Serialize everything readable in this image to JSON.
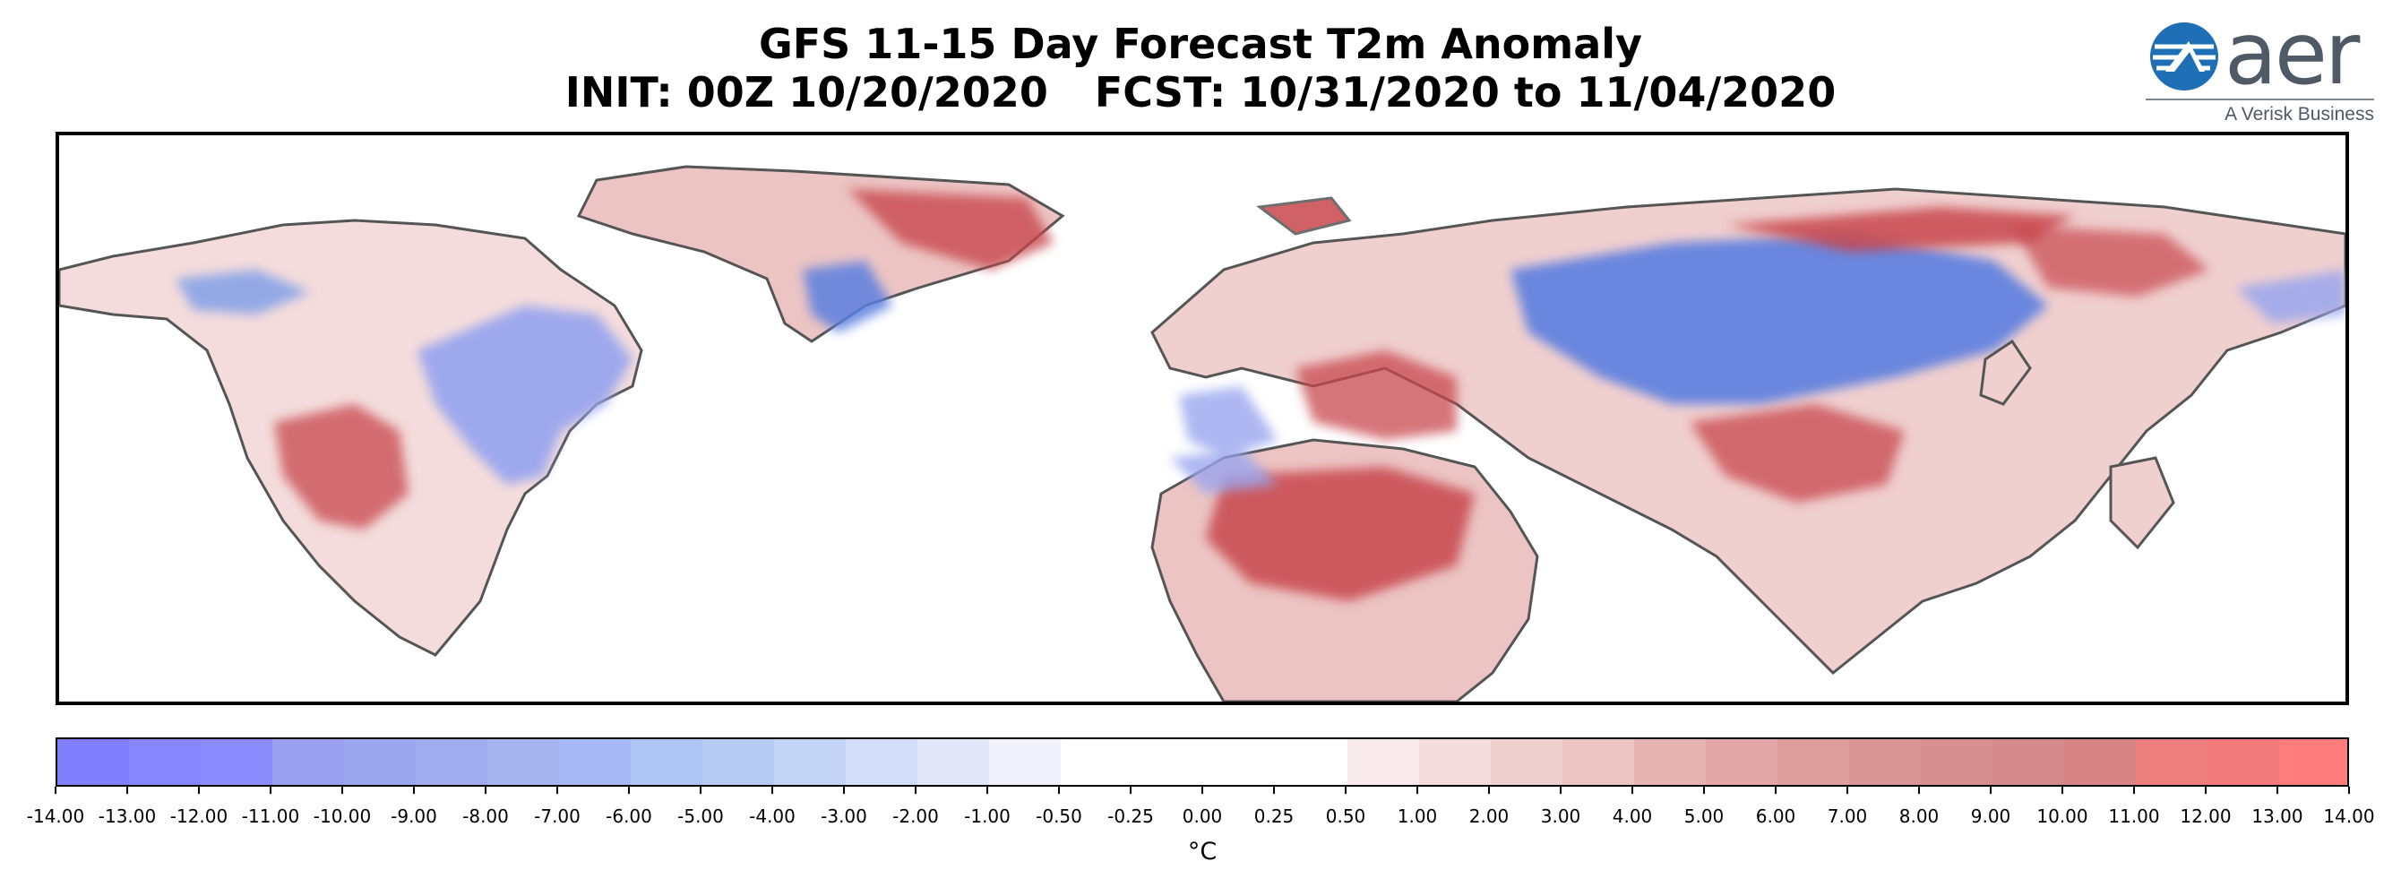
{
  "title": {
    "line1": "GFS 11-15 Day Forecast T2m Anomaly",
    "init": "INIT: 00Z 10/20/2020",
    "fcst": "FCST: 10/31/2020 to 11/04/2020"
  },
  "logo": {
    "word": "aer",
    "tagline": "A Verisk Business",
    "colors": {
      "globe": "#1f6fb6",
      "text": "#505a66"
    }
  },
  "map": {
    "projection": "equirectangular",
    "regions": [
      "North America",
      "Greenland",
      "Europe",
      "Africa",
      "Asia"
    ],
    "anomaly_colors": {
      "warm": "#c8474d",
      "cool": "#5b7fe0",
      "coastline": "#555555"
    }
  },
  "colorbar": {
    "units": "°C",
    "levels": [
      "-14.00",
      "-13.00",
      "-12.00",
      "-11.00",
      "-10.00",
      "-9.00",
      "-8.00",
      "-7.00",
      "-6.00",
      "-5.00",
      "-4.00",
      "-3.00",
      "-2.00",
      "-1.00",
      "-0.50",
      "-0.25",
      "0.00",
      "0.25",
      "0.50",
      "1.00",
      "2.00",
      "3.00",
      "4.00",
      "5.00",
      "6.00",
      "7.00",
      "8.00",
      "9.00",
      "10.00",
      "11.00",
      "12.00",
      "13.00",
      "14.00"
    ],
    "colors": [
      "#8080ff",
      "#8686ff",
      "#8c8cff",
      "#9aa0f0",
      "#9aa6ee",
      "#a0acee",
      "#a6b4f0",
      "#a8b8f4",
      "#aec4f4",
      "#b6ccf4",
      "#c4d4f6",
      "#d2def8",
      "#e2e8fa",
      "#f0f2fc",
      "#ffffff",
      "#ffffff",
      "#ffffff",
      "#ffffff",
      "#f8eaea",
      "#f4dcdc",
      "#f0cfcf",
      "#ecc4c4",
      "#e6b2b2",
      "#e2a6a6",
      "#de9e9e",
      "#da9696",
      "#d68e8e",
      "#d48a8a",
      "#d88484",
      "#ec7e7e",
      "#f27a7a",
      "#ff7c7c"
    ]
  }
}
